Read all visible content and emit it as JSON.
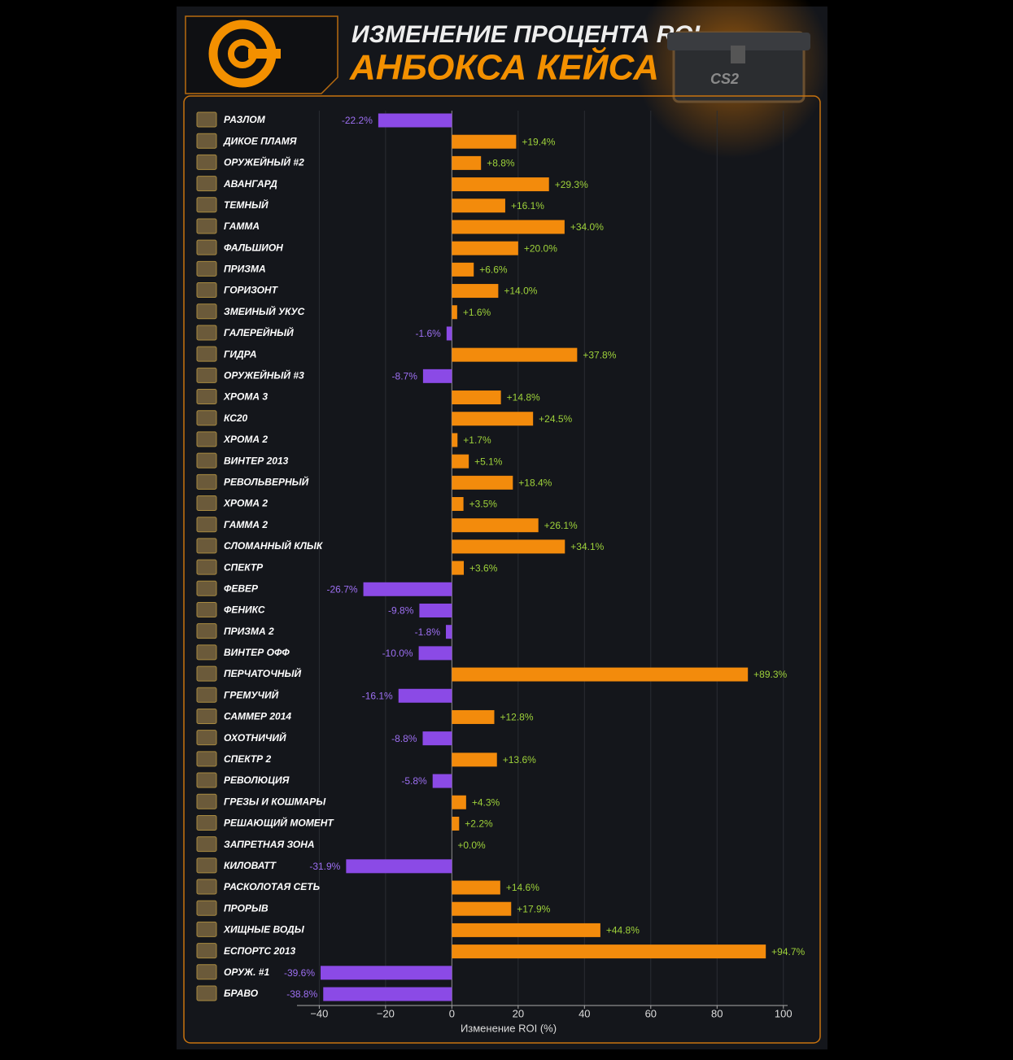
{
  "chart_data": {
    "type": "hbar",
    "title": "ИЗМЕНЕНИЕ ПРОЦЕНТА ROI",
    "subtitle": "АНБОКСА КЕЙСА",
    "badge": "CS2",
    "x_label": "Изменение ROI (%)",
    "categories": [
      "РАЗЛОМ",
      "ДИКОЕ ПЛАМЯ",
      "ОРУЖЕЙНЫЙ #2",
      "АВАНГАРД",
      "ТЕМНЫЙ",
      "ГАММА",
      "ФАЛЬШИОН",
      "ПРИЗМА",
      "ГОРИЗОНТ",
      "ЗМЕИНЫЙ УКУС",
      "ГАЛЕРЕЙНЫЙ",
      "ГИДРА",
      "ОРУЖЕЙНЫЙ #3",
      "ХРОМА 3",
      "КС20",
      "ХРОМА 2",
      "ВИНТЕР 2013",
      "РЕВОЛЬВЕРНЫЙ",
      "ХРОМА 2",
      "ГАММА 2",
      "СЛОМАННЫЙ КЛЫК",
      "СПЕКТР",
      "ФЕВЕР",
      "ФЕНИКС",
      "ПРИЗМА 2",
      "ВИНТЕР ОФФ",
      "ПЕРЧАТОЧНЫЙ",
      "ГРЕМУЧИЙ",
      "САММЕР 2014",
      "ОХОТНИЧИЙ",
      "СПЕКТР 2",
      "РЕВОЛЮЦИЯ",
      "ГРЕЗЫ И КОШМАРЫ",
      "РЕШАЮЩИЙ МОМЕНТ",
      "ЗАПРЕТНАЯ ЗОНА",
      "КИЛОВАТТ",
      "РАСКОЛОТАЯ СЕТЬ",
      "ПРОРЫВ",
      "ХИЩНЫЕ ВОДЫ",
      "ЕСПОРТС 2013",
      "ОРУЖ. #1",
      "БРАВО"
    ],
    "values": [
      -22.2,
      19.4,
      8.8,
      29.3,
      16.1,
      34.0,
      20.0,
      6.6,
      14.0,
      1.6,
      -1.6,
      37.8,
      -8.7,
      14.8,
      24.5,
      1.7,
      5.1,
      18.4,
      3.5,
      26.1,
      34.1,
      3.6,
      -26.7,
      -9.8,
      -1.8,
      -10.0,
      89.3,
      -16.1,
      12.8,
      -8.8,
      13.6,
      -5.8,
      4.3,
      2.2,
      0.0,
      -31.9,
      14.6,
      17.9,
      44.8,
      94.7,
      -39.6,
      -38.8
    ],
    "value_labels": [
      "-22.2%",
      "+19.4%",
      "+8.8%",
      "+29.3%",
      "+16.1%",
      "+34.0%",
      "+20.0%",
      "+6.6%",
      "+14.0%",
      "+1.6%",
      "-1.6%",
      "+37.8%",
      "-8.7%",
      "+14.8%",
      "+24.5%",
      "+1.7%",
      "+5.1%",
      "+18.4%",
      "+3.5%",
      "+26.1%",
      "+34.1%",
      "+3.6%",
      "-26.7%",
      "-9.8%",
      "-1.8%",
      "-10.0%",
      "+89.3%",
      "-16.1%",
      "+12.8%",
      "-8.8%",
      "+13.6%",
      "-5.8%",
      "+4.3%",
      "+2.2%",
      "+0.0%",
      "-31.9%",
      "+14.6%",
      "+17.9%",
      "+44.8%",
      "+94.7%",
      "-39.6%",
      "-38.8%"
    ],
    "positive_color": "#f38b0c",
    "negative_color": "#8b4ae6",
    "xlim": [
      -45,
      103
    ],
    "xticks": [
      {
        "value": -40,
        "label": "−40"
      },
      {
        "value": -20,
        "label": "−20"
      },
      0,
      20,
      40,
      60,
      80,
      100
    ],
    "grid": true
  }
}
